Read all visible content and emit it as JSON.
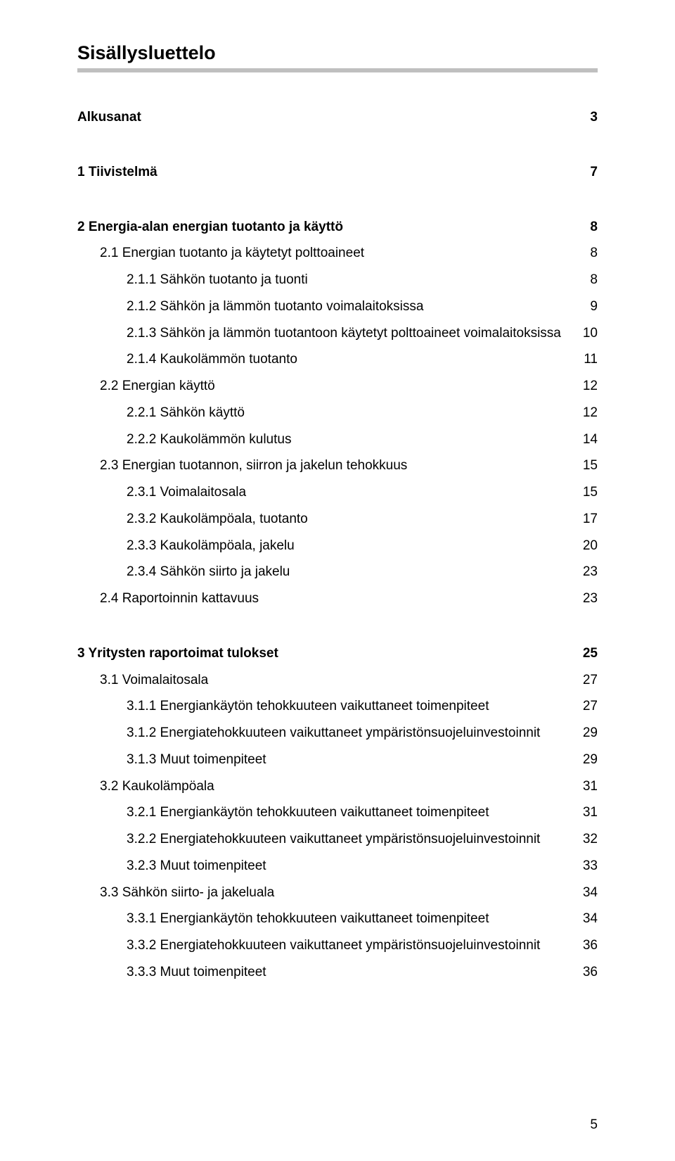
{
  "title": "Sisällysluettelo",
  "colors": {
    "text": "#000000",
    "background": "#ffffff",
    "rule": "#bfbfbf"
  },
  "fonts": {
    "family": "Arial, Helvetica, sans-serif",
    "title_pt": 27,
    "body_pt": 19
  },
  "entries": [
    {
      "label": "Alkusanat",
      "page": "3",
      "level": 0,
      "bold": true,
      "gap_after": "big"
    },
    {
      "label": "1  Tiivistelmä",
      "page": "7",
      "level": 0,
      "bold": true,
      "gap_after": "big"
    },
    {
      "label": "2  Energia-alan energian tuotanto ja käyttö",
      "page": "8",
      "level": 0,
      "bold": true
    },
    {
      "label": "2.1  Energian tuotanto ja käytetyt polttoaineet",
      "page": "8",
      "level": 1
    },
    {
      "label": "2.1.1  Sähkön tuotanto ja tuonti",
      "page": "8",
      "level": 2
    },
    {
      "label": "2.1.2  Sähkön ja lämmön tuotanto voimalaitoksissa",
      "page": "9",
      "level": 2
    },
    {
      "label": "2.1.3  Sähkön ja lämmön tuotantoon käytetyt polttoaineet voimalaitoksissa",
      "page": "10",
      "level": 2
    },
    {
      "label": "2.1.4  Kaukolämmön tuotanto",
      "page": "11",
      "level": 2
    },
    {
      "label": "2.2  Energian käyttö",
      "page": "12",
      "level": 1
    },
    {
      "label": "2.2.1  Sähkön käyttö",
      "page": "12",
      "level": 2
    },
    {
      "label": "2.2.2  Kaukolämmön kulutus",
      "page": "14",
      "level": 2
    },
    {
      "label": "2.3  Energian tuotannon, siirron ja jakelun tehokkuus",
      "page": "15",
      "level": 1
    },
    {
      "label": "2.3.1  Voimalaitosala",
      "page": "15",
      "level": 2
    },
    {
      "label": "2.3.2  Kaukolämpöala, tuotanto",
      "page": "17",
      "level": 2
    },
    {
      "label": "2.3.3  Kaukolämpöala, jakelu",
      "page": "20",
      "level": 2
    },
    {
      "label": "2.3.4  Sähkön siirto ja jakelu",
      "page": "23",
      "level": 2
    },
    {
      "label": "2.4  Raportoinnin kattavuus",
      "page": "23",
      "level": 1,
      "gap_after": "big"
    },
    {
      "label": "3  Yritysten raportoimat tulokset",
      "page": "25",
      "level": 0,
      "bold": true
    },
    {
      "label": "3.1  Voimalaitosala",
      "page": "27",
      "level": 1
    },
    {
      "label": "3.1.1  Energiankäytön tehokkuuteen vaikuttaneet toimenpiteet",
      "page": "27",
      "level": 2
    },
    {
      "label": "3.1.2  Energiatehokkuuteen vaikuttaneet ympäristönsuojeluinvestoinnit",
      "page": "29",
      "level": 2
    },
    {
      "label": "3.1.3  Muut toimenpiteet",
      "page": "29",
      "level": 2
    },
    {
      "label": "3.2  Kaukolämpöala",
      "page": "31",
      "level": 1
    },
    {
      "label": "3.2.1  Energiankäytön tehokkuuteen vaikuttaneet toimenpiteet",
      "page": "31",
      "level": 2
    },
    {
      "label": "3.2.2  Energiatehokkuuteen vaikuttaneet ympäristönsuojeluinvestoinnit",
      "page": "32",
      "level": 2
    },
    {
      "label": "3.2.3  Muut toimenpiteet",
      "page": "33",
      "level": 2
    },
    {
      "label": "3.3  Sähkön siirto- ja jakeluala",
      "page": "34",
      "level": 1
    },
    {
      "label": "3.3.1  Energiankäytön tehokkuuteen vaikuttaneet toimenpiteet",
      "page": "34",
      "level": 2
    },
    {
      "label": "3.3.2  Energiatehokkuuteen vaikuttaneet ympäristönsuojeluinvestoinnit",
      "page": "36",
      "level": 2
    },
    {
      "label": "3.3.3  Muut toimenpiteet",
      "page": "36",
      "level": 2
    }
  ],
  "footer_page": "5"
}
